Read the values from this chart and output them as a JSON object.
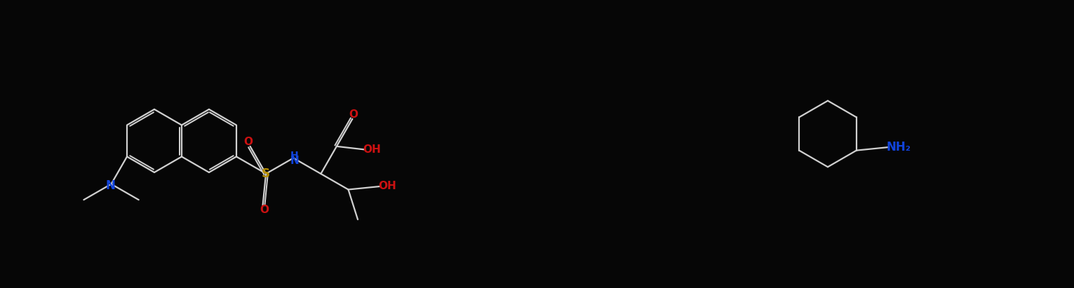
{
  "bg": "#060606",
  "bc": "#d0d0d0",
  "colors": {
    "N": "#1144dd",
    "O": "#cc1111",
    "S": "#b89000",
    "HN": "#1144dd",
    "OH": "#cc1111",
    "NH2": "#1144dd"
  },
  "figsize": [
    15.31,
    4.11
  ],
  "dpi": 100,
  "lw": 1.6,
  "fs": 11
}
